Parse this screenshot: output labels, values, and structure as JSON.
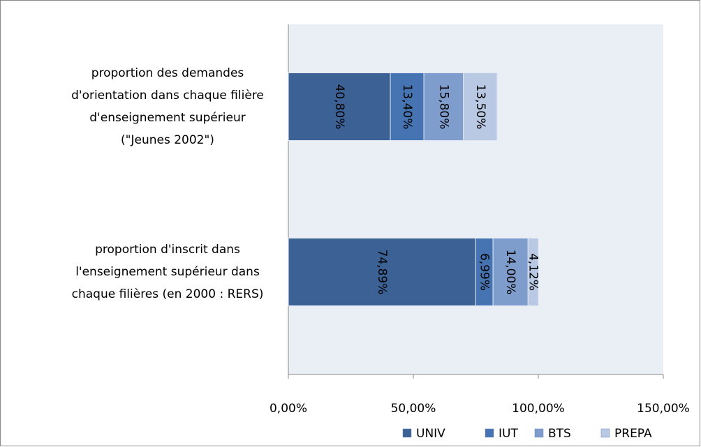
{
  "chart_data": {
    "type": "stacked_barh",
    "categories": [
      "proportion des demandes\nd'orientation dans chaque filière\nd'enseignement supérieur\n(\"Jeunes 2002\")",
      "proportion d'inscrit dans\nl'enseignement supérieur dans\nchaque filières (en 2000 : RERS)"
    ],
    "series": [
      {
        "name": "UNIV",
        "color": "#3b6195",
        "values": [
          40.8,
          74.89
        ],
        "value_labels": [
          "40,80%",
          "74,89%"
        ]
      },
      {
        "name": "IUT",
        "color": "#4673b1",
        "values": [
          13.4,
          6.99
        ],
        "value_labels": [
          "13,40%",
          "6,99%"
        ]
      },
      {
        "name": "BTS",
        "color": "#7f9dcc",
        "values": [
          15.8,
          14.0
        ],
        "value_labels": [
          "15,80%",
          "14,00%"
        ]
      },
      {
        "name": "PREPA",
        "color": "#b9c9e4",
        "values": [
          13.5,
          4.12
        ],
        "value_labels": [
          "13,50%",
          "4,12%"
        ]
      }
    ],
    "xlim": [
      0,
      150
    ],
    "xticks": [
      {
        "value": 0,
        "label": "0,00%"
      },
      {
        "value": 50,
        "label": "50,00%"
      },
      {
        "value": 100,
        "label": "100,00%"
      },
      {
        "value": 150,
        "label": "150,00%"
      }
    ],
    "legend": "bottom"
  }
}
